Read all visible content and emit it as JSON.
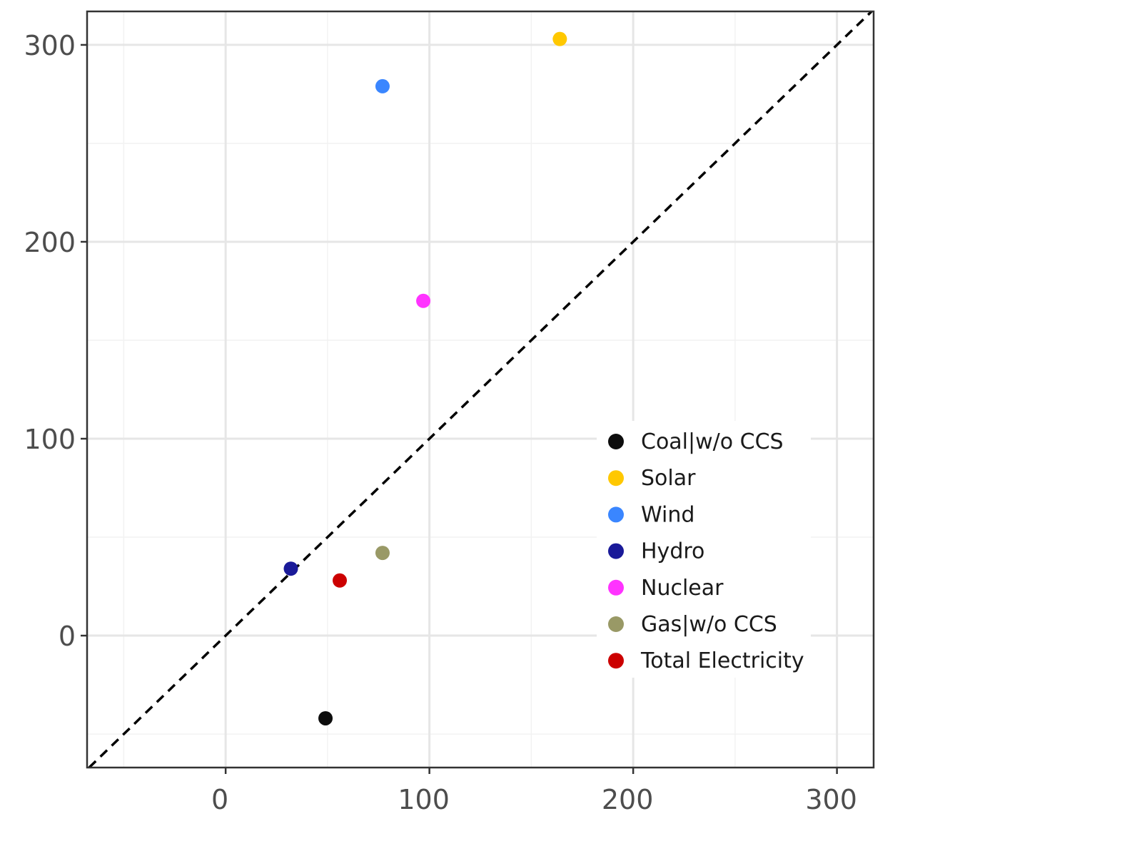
{
  "chart_data": {
    "type": "scatter",
    "title": "",
    "xlabel": "",
    "ylabel": "",
    "xlim": [
      -68,
      318
    ],
    "ylim": [
      -67,
      317
    ],
    "x_ticks": [
      0,
      100,
      200,
      300
    ],
    "y_ticks": [
      0,
      100,
      200,
      300
    ],
    "x_tick_labels": [
      "0",
      "100",
      "200",
      "300"
    ],
    "y_tick_labels": [
      "0",
      "100",
      "200",
      "300"
    ],
    "grid": true,
    "reference_line": {
      "style": "dashed",
      "color": "#000000",
      "slope": 1,
      "intercept": 0
    },
    "legend_position": "inside-bottom-right",
    "series": [
      {
        "name": "Coal|w/o CCS",
        "color": "#0d0d0d",
        "x": 49,
        "y": -42
      },
      {
        "name": "Solar",
        "color": "#ffc800",
        "x": 164,
        "y": 303
      },
      {
        "name": "Wind",
        "color": "#3a86ff",
        "x": 77,
        "y": 279
      },
      {
        "name": "Hydro",
        "color": "#1a1a99",
        "x": 32,
        "y": 34
      },
      {
        "name": "Nuclear",
        "color": "#ff33ff",
        "x": 97,
        "y": 170
      },
      {
        "name": "Gas|w/o CCS",
        "color": "#999966",
        "x": 77,
        "y": 42
      },
      {
        "name": "Total Electricity",
        "color": "#cc0000",
        "x": 56,
        "y": 28
      }
    ]
  }
}
